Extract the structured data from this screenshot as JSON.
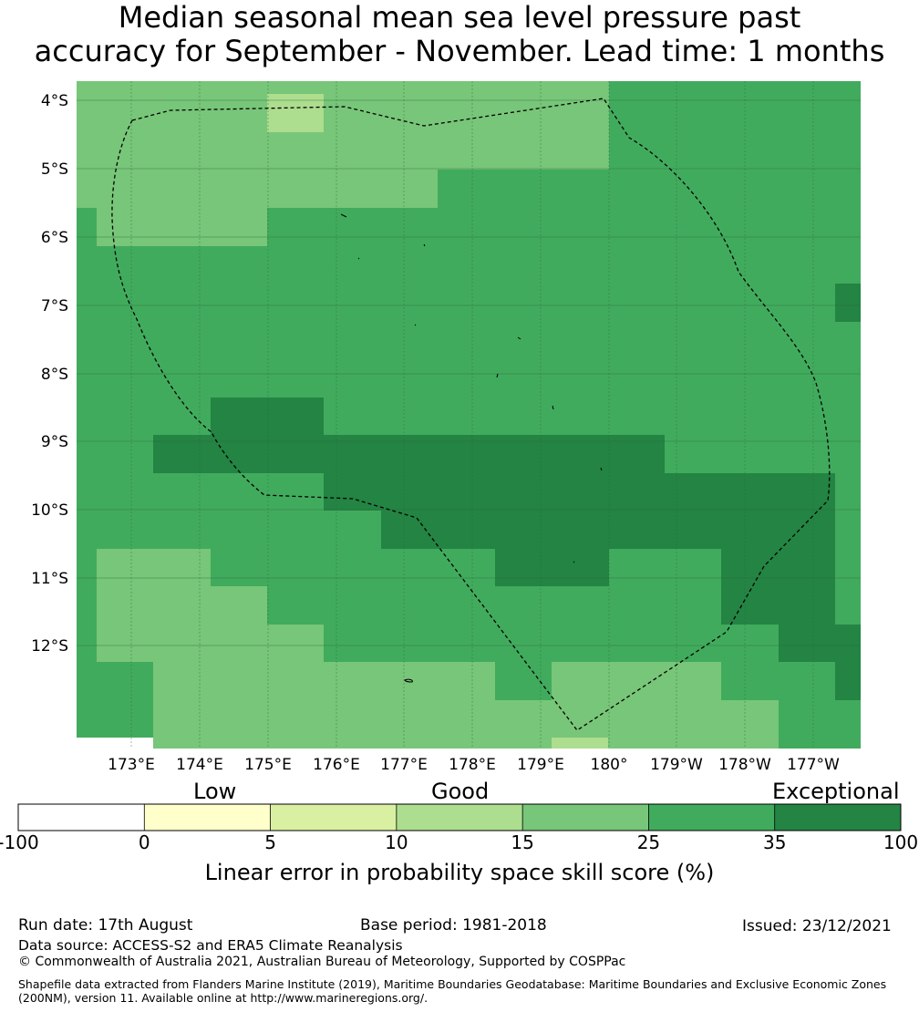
{
  "title_line1": "Median seasonal mean sea level pressure past",
  "title_line2": "accuracy for September - November. Lead time: 1 months",
  "map": {
    "lat_labels": [
      "4°S",
      "5°S",
      "6°S",
      "7°S",
      "8°S",
      "9°S",
      "10°S",
      "11°S",
      "12°S"
    ],
    "lon_labels": [
      "173°E",
      "174°E",
      "175°E",
      "176°E",
      "177°E",
      "178°E",
      "179°E",
      "180°",
      "179°W",
      "178°W",
      "177°W"
    ]
  },
  "colorbar": {
    "category_labels": [
      "Low",
      "Good",
      "Exceptional"
    ],
    "tick_labels": [
      "-100",
      "0",
      "5",
      "10",
      "15",
      "25",
      "35",
      "100"
    ],
    "title": "Linear error in probability space skill score (%)",
    "colors": [
      "#ffffff",
      "#ffffcc",
      "#d9f0a3",
      "#addd8e",
      "#78c679",
      "#41ab5d",
      "#238443"
    ]
  },
  "footer": {
    "run_date": "Run date: 17th August",
    "base_period": "Base period: 1981-2018",
    "issued": "Issued: 23/12/2021",
    "data_source": "Data source: ACCESS-S2 and ERA5 Climate Reanalysis",
    "copyright": "© Commonwealth of Australia 2021, Australian Bureau of Meteorology, Supported by COSPPac",
    "shapefile": "Shapefile data extracted from Flanders Marine Institute (2019), Maritime Boundaries Geodatabase: Maritime Boundaries and Exclusive Economic Zones (200NM), version 11. Available online at http://www.marineregions.org/."
  }
}
